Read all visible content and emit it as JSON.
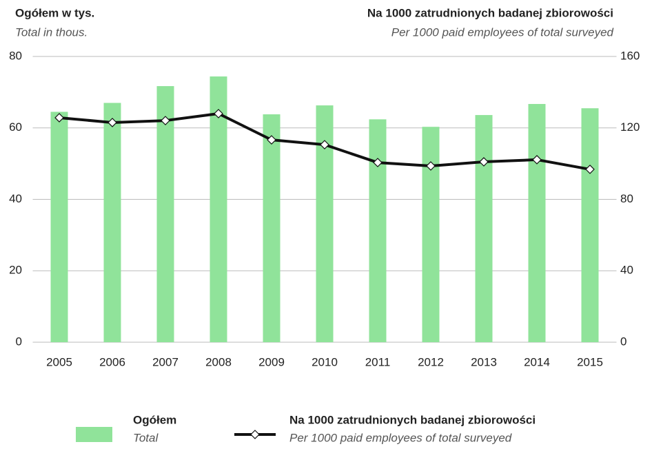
{
  "chart_data": {
    "type": "bar_line",
    "y_label": "Ogółem w tys.",
    "y_label_en": "Total in thous.",
    "y2_label": "Na 1000 zatrudnionych badanej zbiorowości",
    "y2_label_en": "Per 1000 paid employees of total surveyed",
    "categories": [
      "2005",
      "2006",
      "2007",
      "2008",
      "2009",
      "2010",
      "2011",
      "2012",
      "2013",
      "2014",
      "2015"
    ],
    "series": [
      {
        "name": "Ogółem",
        "name_en": "Total",
        "type": "bar",
        "color": "#90e39a",
        "values": [
          64.5,
          67,
          71.7,
          74.4,
          63.8,
          66.3,
          62.4,
          60.3,
          63.6,
          66.7,
          65.5
        ]
      },
      {
        "name": "Na 1000 zatrudnionych badanej zbiorowości",
        "name_en": "Per 1000 paid employees of total surveyed",
        "type": "line",
        "axis": "y2",
        "color": "#111111",
        "values": [
          125.7,
          123,
          124.1,
          128,
          113.3,
          110.6,
          100.6,
          98.7,
          101,
          102.2,
          96.8
        ]
      }
    ],
    "ylim": [
      0,
      80
    ],
    "yticks": [
      0,
      20,
      40,
      60,
      80
    ],
    "y2lim": [
      0,
      160
    ],
    "y2ticks": [
      0,
      40,
      80,
      120,
      160
    ],
    "grid": true
  }
}
